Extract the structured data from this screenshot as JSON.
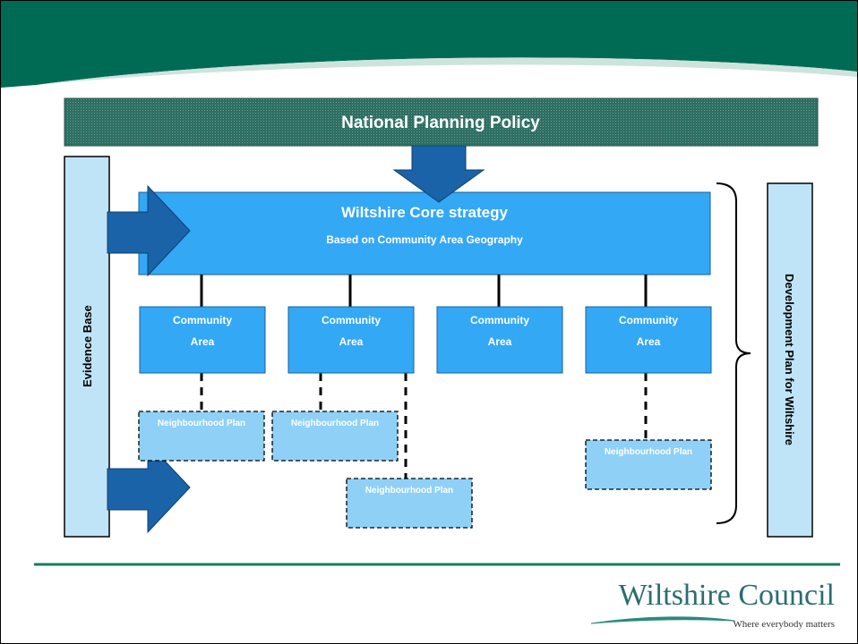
{
  "header": {
    "title": "National Planning Policy"
  },
  "core": {
    "title": "Wiltshire Core strategy",
    "subtitle": "Based on Community Area Geography"
  },
  "community_areas": [
    {
      "line1": "Community",
      "line2": "Area"
    },
    {
      "line1": "Community",
      "line2": "Area"
    },
    {
      "line1": "Community",
      "line2": "Area"
    },
    {
      "line1": "Community",
      "line2": "Area"
    }
  ],
  "neighbourhood_plans": [
    "Neighbourhood Plan",
    "Neighbourhood Plan",
    "Neighbourhood Plan",
    "Neighbourhood Plan"
  ],
  "side_left": "Evidence Base",
  "side_right": "Development Plan for Wiltshire",
  "logo": {
    "name": "Wiltshire Council",
    "tagline": "Where everybody matters"
  }
}
